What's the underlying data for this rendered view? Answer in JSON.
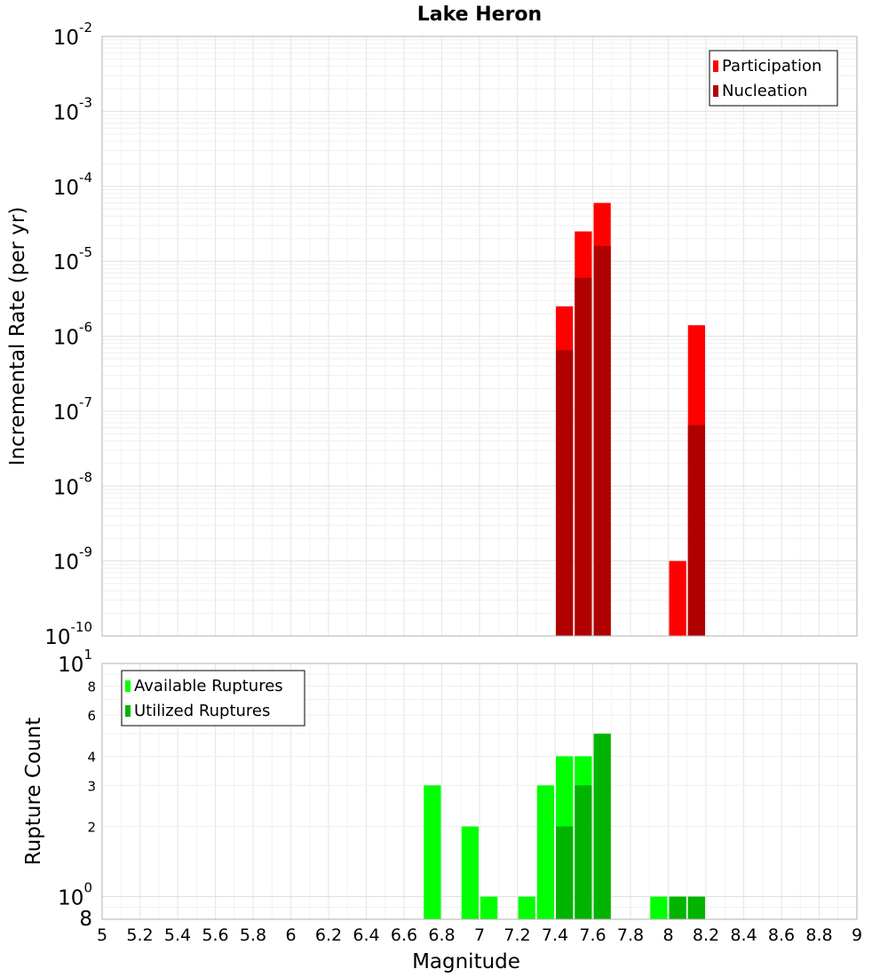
{
  "chart_data": {
    "title": "Lake Heron",
    "xlabel": "Magnitude",
    "xlim": [
      5,
      9
    ],
    "x_ticks": [
      "5",
      "5.2",
      "5.4",
      "5.6",
      "5.8",
      "6",
      "6.2",
      "6.4",
      "6.6",
      "6.8",
      "7",
      "7.2",
      "7.4",
      "7.6",
      "7.8",
      "8",
      "8.2",
      "8.4",
      "8.6",
      "8.8",
      "9"
    ],
    "bin_width": 0.1,
    "panels": [
      {
        "type": "bar",
        "scale": "log",
        "ylabel": "Incremental Rate (per yr)",
        "ylim": [
          1e-10,
          0.01
        ],
        "grid": true,
        "legend_position": "top-right",
        "series": [
          {
            "name": "Participation",
            "color": "#ff0000",
            "x": [
              7.45,
              7.55,
              7.65,
              8.05,
              8.15
            ],
            "values": [
              2.5e-06,
              2.5e-05,
              6e-05,
              1e-09,
              1.4e-06
            ]
          },
          {
            "name": "Nucleation",
            "color": "#b00000",
            "x": [
              7.45,
              7.55,
              7.65,
              8.15
            ],
            "values": [
              6.5e-07,
              6e-06,
              1.6e-05,
              6.5e-08
            ]
          }
        ]
      },
      {
        "type": "bar",
        "scale": "log",
        "ylabel": "Rupture Count",
        "ylim": [
          0.8,
          10
        ],
        "grid": true,
        "legend_position": "top-left",
        "series": [
          {
            "name": "Available Ruptures",
            "color": "#00ff00",
            "x": [
              6.75,
              6.95,
              7.05,
              7.25,
              7.35,
              7.45,
              7.55,
              7.65,
              7.95,
              8.05,
              8.15
            ],
            "values": [
              3,
              2,
              1,
              1,
              3,
              4,
              4,
              5,
              1,
              1,
              1
            ]
          },
          {
            "name": "Utilized Ruptures",
            "color": "#00b400",
            "x": [
              7.45,
              7.55,
              7.65,
              8.05,
              8.15
            ],
            "values": [
              2,
              3,
              5,
              1,
              1
            ]
          }
        ]
      }
    ]
  }
}
